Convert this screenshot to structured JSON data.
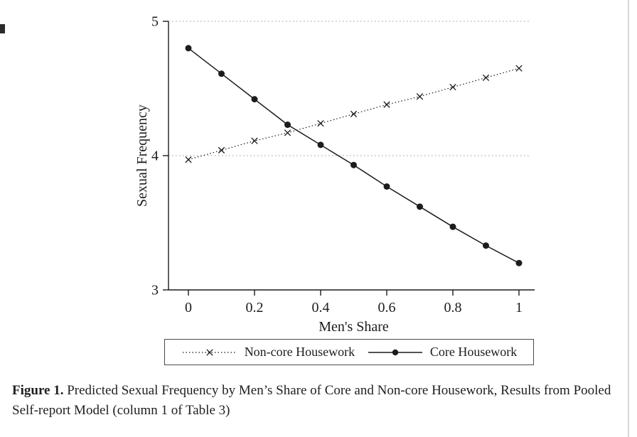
{
  "figure": {
    "caption_label": "Figure 1.",
    "caption_text": " Predicted Sexual Frequency by Men’s Share of Core and Non-core Housework, Results from Pooled Self-report Model (column 1 of Table 3)"
  },
  "chart_data": {
    "type": "line",
    "title": "",
    "xlabel": "Men's Share",
    "ylabel": "Sexual Frequency",
    "xlim": [
      0,
      1
    ],
    "ylim": [
      3,
      5
    ],
    "xticks": [
      0,
      0.2,
      0.4,
      0.6,
      0.8,
      1
    ],
    "yticks": [
      3,
      4,
      5
    ],
    "gridlines_y": [
      4,
      5
    ],
    "grid": "horizontal-dotted",
    "legend_position": "bottom",
    "line_color": "#1c1c1c",
    "grid_color": "#9a9a9a",
    "x": [
      0,
      0.1,
      0.2,
      0.3,
      0.4,
      0.5,
      0.6,
      0.7,
      0.8,
      0.9,
      1
    ],
    "series": [
      {
        "name": "Non-core Housework",
        "marker": "x",
        "line_style": "dotted",
        "color": "#1c1c1c",
        "values": [
          3.97,
          4.04,
          4.11,
          4.17,
          4.24,
          4.31,
          4.38,
          4.44,
          4.51,
          4.58,
          4.65
        ]
      },
      {
        "name": "Core Housework",
        "marker": "circle",
        "line_style": "solid",
        "color": "#1c1c1c",
        "values": [
          4.8,
          4.61,
          4.42,
          4.23,
          4.08,
          3.93,
          3.77,
          3.62,
          3.47,
          3.33,
          3.2
        ]
      }
    ]
  }
}
